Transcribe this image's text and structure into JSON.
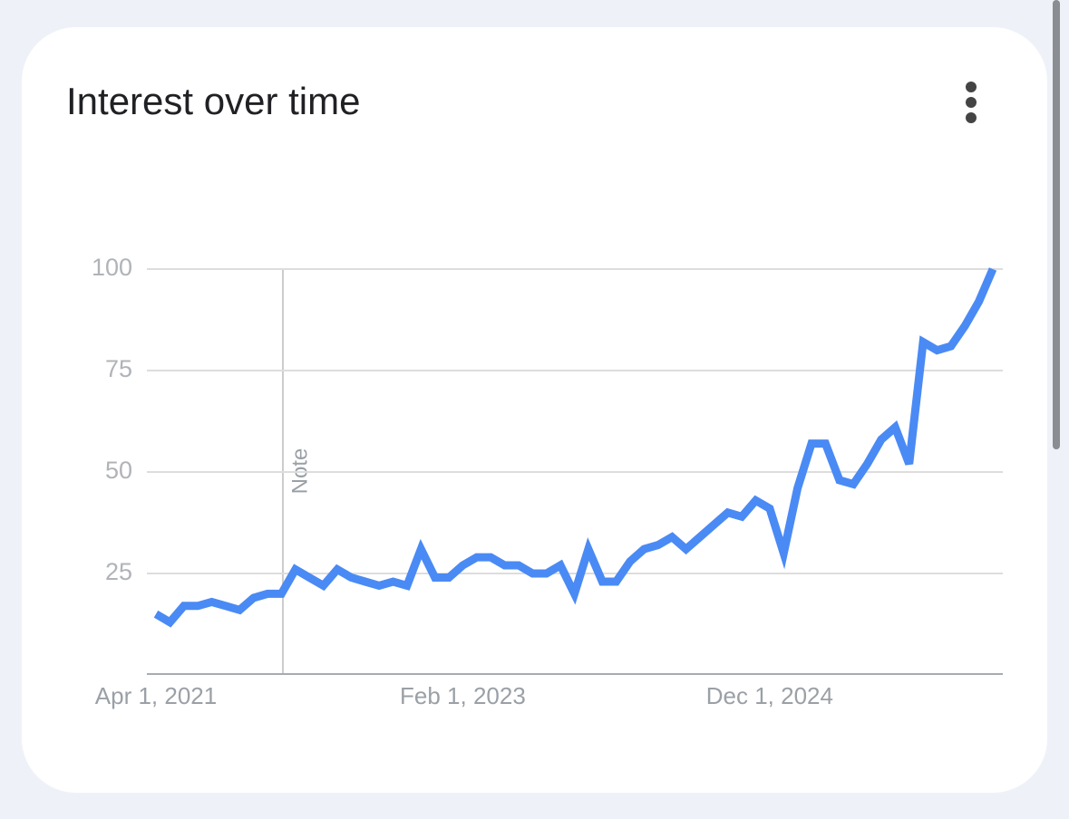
{
  "title": "Interest over time",
  "chart_data": {
    "type": "line",
    "color": "#4a8af4",
    "annotation": "Note",
    "categories": [
      "Apr 1, 2021",
      null,
      null,
      null,
      null,
      null,
      null,
      null,
      null,
      null,
      null,
      null,
      null,
      null,
      null,
      null,
      null,
      null,
      null,
      null,
      null,
      null,
      "Feb 1, 2023",
      null,
      null,
      null,
      null,
      null,
      null,
      null,
      null,
      null,
      null,
      null,
      null,
      null,
      null,
      null,
      null,
      null,
      null,
      null,
      null,
      null,
      "Dec 1, 2024",
      null,
      null,
      null,
      null,
      null,
      null,
      null,
      null,
      null,
      null,
      null,
      null,
      null,
      null,
      null,
      null
    ],
    "values": [
      15,
      13,
      17,
      17,
      18,
      17,
      16,
      19,
      20,
      20,
      26,
      24,
      22,
      26,
      24,
      23,
      22,
      23,
      22,
      31,
      24,
      24,
      27,
      29,
      29,
      27,
      27,
      25,
      25,
      27,
      20,
      31,
      23,
      23,
      28,
      31,
      32,
      34,
      31,
      34,
      37,
      40,
      39,
      43,
      41,
      30,
      46,
      57,
      57,
      48,
      47,
      52,
      58,
      61,
      52,
      82,
      80,
      81,
      86,
      92,
      100
    ],
    "ylim": [
      0,
      100
    ],
    "yticks": [
      25,
      50,
      75,
      100
    ],
    "grid": true
  }
}
